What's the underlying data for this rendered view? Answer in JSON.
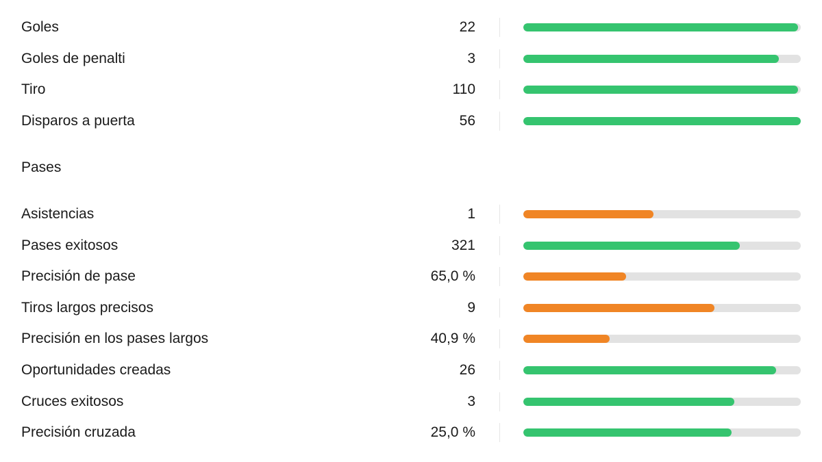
{
  "colors": {
    "good": "#35c46f",
    "warn": "#f08525",
    "track": "#e2e2e2"
  },
  "group_top": [
    {
      "label": "Goles",
      "value": "22",
      "level": 0.99,
      "status": "good"
    },
    {
      "label": "Goles de penalti",
      "value": "3",
      "level": 0.92,
      "status": "good"
    },
    {
      "label": "Tiro",
      "value": "110",
      "level": 0.99,
      "status": "good"
    },
    {
      "label": "Disparos a puerta",
      "value": "56",
      "level": 1.0,
      "status": "good"
    }
  ],
  "passes": {
    "title": "Pases",
    "rows": [
      {
        "label": "Asistencias",
        "value": "1",
        "level": 0.47,
        "status": "warn"
      },
      {
        "label": "Pases exitosos",
        "value": "321",
        "level": 0.78,
        "status": "good"
      },
      {
        "label": "Precisión de pase",
        "value": "65,0 %",
        "level": 0.37,
        "status": "warn"
      },
      {
        "label": "Tiros largos precisos",
        "value": "9",
        "level": 0.69,
        "status": "warn"
      },
      {
        "label": "Precisión en los pases largos",
        "value": "40,9 %",
        "level": 0.31,
        "status": "warn"
      },
      {
        "label": "Oportunidades creadas",
        "value": "26",
        "level": 0.91,
        "status": "good"
      },
      {
        "label": "Cruces exitosos",
        "value": "3",
        "level": 0.76,
        "status": "good"
      },
      {
        "label": "Precisión cruzada",
        "value": "25,0 %",
        "level": 0.75,
        "status": "good"
      }
    ]
  }
}
